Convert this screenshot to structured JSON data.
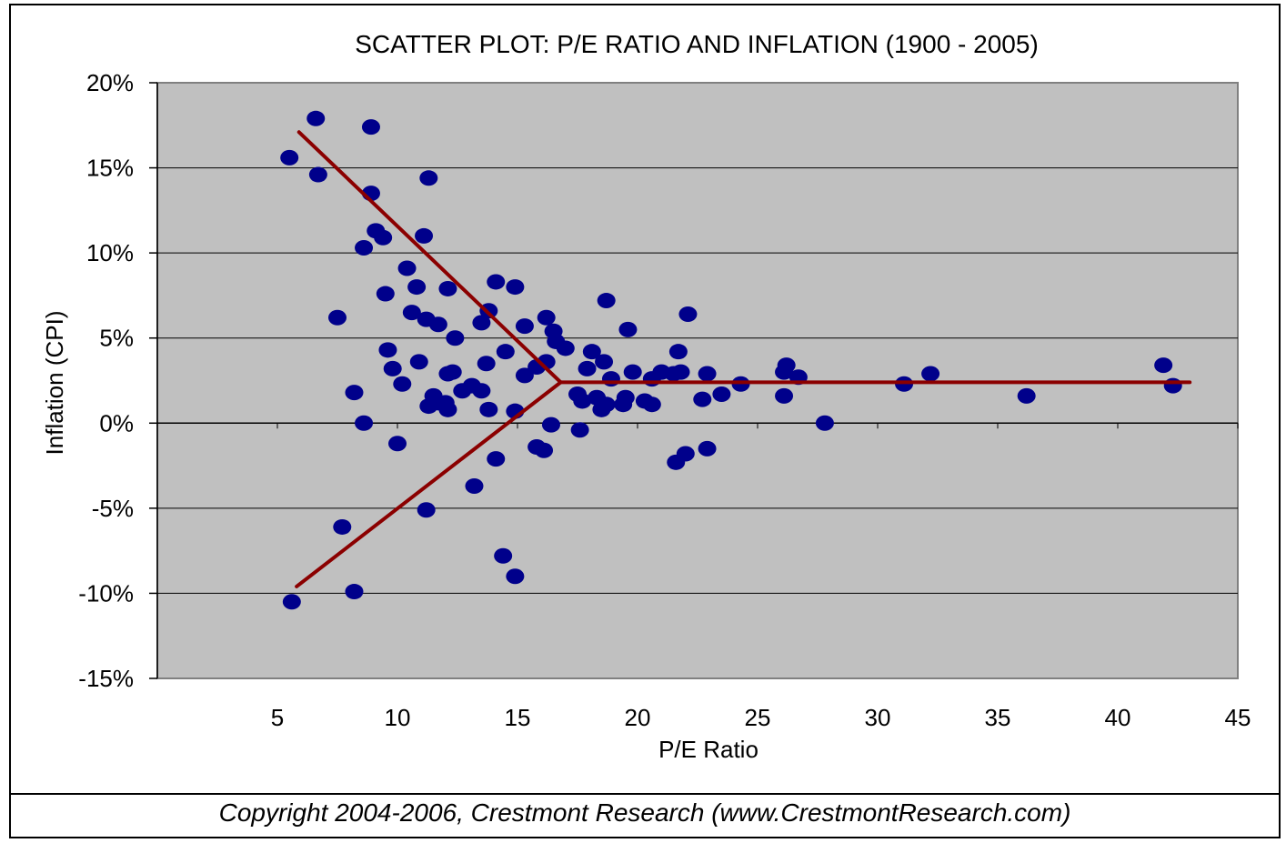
{
  "footer": {
    "copyright": "Copyright 2004-2006, Crestmont Research (www.CrestmontResearch.com)"
  },
  "chart_data": {
    "type": "scatter",
    "title": "SCATTER PLOT: P/E RATIO AND INFLATION (1900 - 2005)",
    "xlabel": "P/E Ratio",
    "ylabel": "Inflation (CPI)",
    "xlim": [
      0,
      45
    ],
    "ylim": [
      -15,
      20
    ],
    "x_ticks": [
      5,
      10,
      15,
      20,
      25,
      30,
      35,
      40,
      45
    ],
    "x_tick_labels": [
      "5",
      "10",
      "15",
      "20",
      "25",
      "30",
      "35",
      "40",
      "45"
    ],
    "y_ticks": [
      -15,
      -10,
      -5,
      0,
      5,
      10,
      15,
      20
    ],
    "y_tick_labels": [
      "-15%",
      "-10%",
      "-5%",
      "0%",
      "5%",
      "10%",
      "15%",
      "20%"
    ],
    "grid": "horizontal",
    "plot_background": "#c0c0c0",
    "point_color": "#00008b",
    "line_color": "#8b0000",
    "points": [
      [
        5.5,
        15.6
      ],
      [
        6.6,
        17.9
      ],
      [
        6.7,
        14.6
      ],
      [
        8.9,
        17.4
      ],
      [
        8.9,
        13.5
      ],
      [
        11.3,
        14.4
      ],
      [
        9.1,
        11.3
      ],
      [
        9.4,
        10.9
      ],
      [
        8.6,
        10.3
      ],
      [
        11.1,
        11.0
      ],
      [
        10.4,
        9.1
      ],
      [
        10.8,
        8.0
      ],
      [
        9.5,
        7.6
      ],
      [
        12.1,
        7.9
      ],
      [
        7.5,
        6.2
      ],
      [
        10.6,
        6.5
      ],
      [
        11.2,
        6.1
      ],
      [
        11.7,
        5.8
      ],
      [
        12.4,
        5.0
      ],
      [
        13.8,
        6.6
      ],
      [
        13.5,
        5.9
      ],
      [
        14.1,
        8.3
      ],
      [
        14.9,
        8.0
      ],
      [
        15.3,
        5.7
      ],
      [
        16.2,
        6.2
      ],
      [
        16.5,
        5.4
      ],
      [
        16.6,
        4.8
      ],
      [
        17.0,
        4.4
      ],
      [
        18.7,
        7.2
      ],
      [
        19.6,
        5.5
      ],
      [
        22.1,
        6.4
      ],
      [
        9.6,
        4.3
      ],
      [
        9.8,
        3.2
      ],
      [
        10.9,
        3.6
      ],
      [
        10.2,
        2.3
      ],
      [
        12.1,
        2.9
      ],
      [
        12.3,
        3.0
      ],
      [
        12.7,
        1.9
      ],
      [
        13.1,
        2.2
      ],
      [
        13.5,
        1.9
      ],
      [
        13.7,
        3.5
      ],
      [
        14.5,
        4.2
      ],
      [
        15.3,
        2.8
      ],
      [
        15.8,
        3.3
      ],
      [
        16.2,
        3.6
      ],
      [
        11.3,
        1.0
      ],
      [
        11.5,
        1.6
      ],
      [
        11.7,
        1.2
      ],
      [
        12.0,
        1.2
      ],
      [
        12.1,
        0.8
      ],
      [
        13.8,
        0.8
      ],
      [
        14.9,
        0.7
      ],
      [
        17.5,
        1.7
      ],
      [
        17.7,
        1.3
      ],
      [
        17.9,
        3.2
      ],
      [
        18.1,
        4.2
      ],
      [
        18.6,
        3.6
      ],
      [
        18.9,
        2.6
      ],
      [
        19.8,
        3.0
      ],
      [
        18.3,
        1.5
      ],
      [
        18.5,
        0.8
      ],
      [
        18.7,
        1.1
      ],
      [
        19.4,
        1.1
      ],
      [
        19.5,
        1.5
      ],
      [
        20.3,
        1.3
      ],
      [
        20.6,
        1.1
      ],
      [
        20.6,
        2.6
      ],
      [
        21.0,
        3.0
      ],
      [
        21.5,
        2.9
      ],
      [
        21.7,
        4.2
      ],
      [
        21.8,
        3.0
      ],
      [
        22.9,
        2.9
      ],
      [
        23.5,
        1.7
      ],
      [
        22.7,
        1.4
      ],
      [
        24.3,
        2.3
      ],
      [
        26.1,
        3.0
      ],
      [
        26.2,
        3.4
      ],
      [
        26.7,
        2.7
      ],
      [
        26.1,
        1.6
      ],
      [
        27.8,
        0.0
      ],
      [
        31.1,
        2.3
      ],
      [
        32.2,
        2.9
      ],
      [
        36.2,
        1.6
      ],
      [
        41.9,
        3.4
      ],
      [
        42.3,
        2.2
      ],
      [
        8.2,
        1.8
      ],
      [
        8.6,
        0.0
      ],
      [
        10.0,
        -1.2
      ],
      [
        15.8,
        -1.4
      ],
      [
        16.1,
        -1.6
      ],
      [
        16.4,
        -0.1
      ],
      [
        17.6,
        -0.4
      ],
      [
        14.1,
        -2.1
      ],
      [
        13.2,
        -3.7
      ],
      [
        11.2,
        -5.1
      ],
      [
        7.7,
        -6.1
      ],
      [
        14.4,
        -7.8
      ],
      [
        14.9,
        -9.0
      ],
      [
        5.6,
        -10.5
      ],
      [
        8.2,
        -9.9
      ],
      [
        21.6,
        -2.3
      ],
      [
        22.0,
        -1.8
      ],
      [
        22.9,
        -1.5
      ]
    ],
    "fit_lines": [
      [
        [
          5.9,
          17.1
        ],
        [
          16.8,
          2.4
        ]
      ],
      [
        [
          5.8,
          -9.6
        ],
        [
          16.8,
          2.4
        ]
      ],
      [
        [
          16.8,
          2.4
        ],
        [
          43.0,
          2.4
        ]
      ]
    ]
  }
}
